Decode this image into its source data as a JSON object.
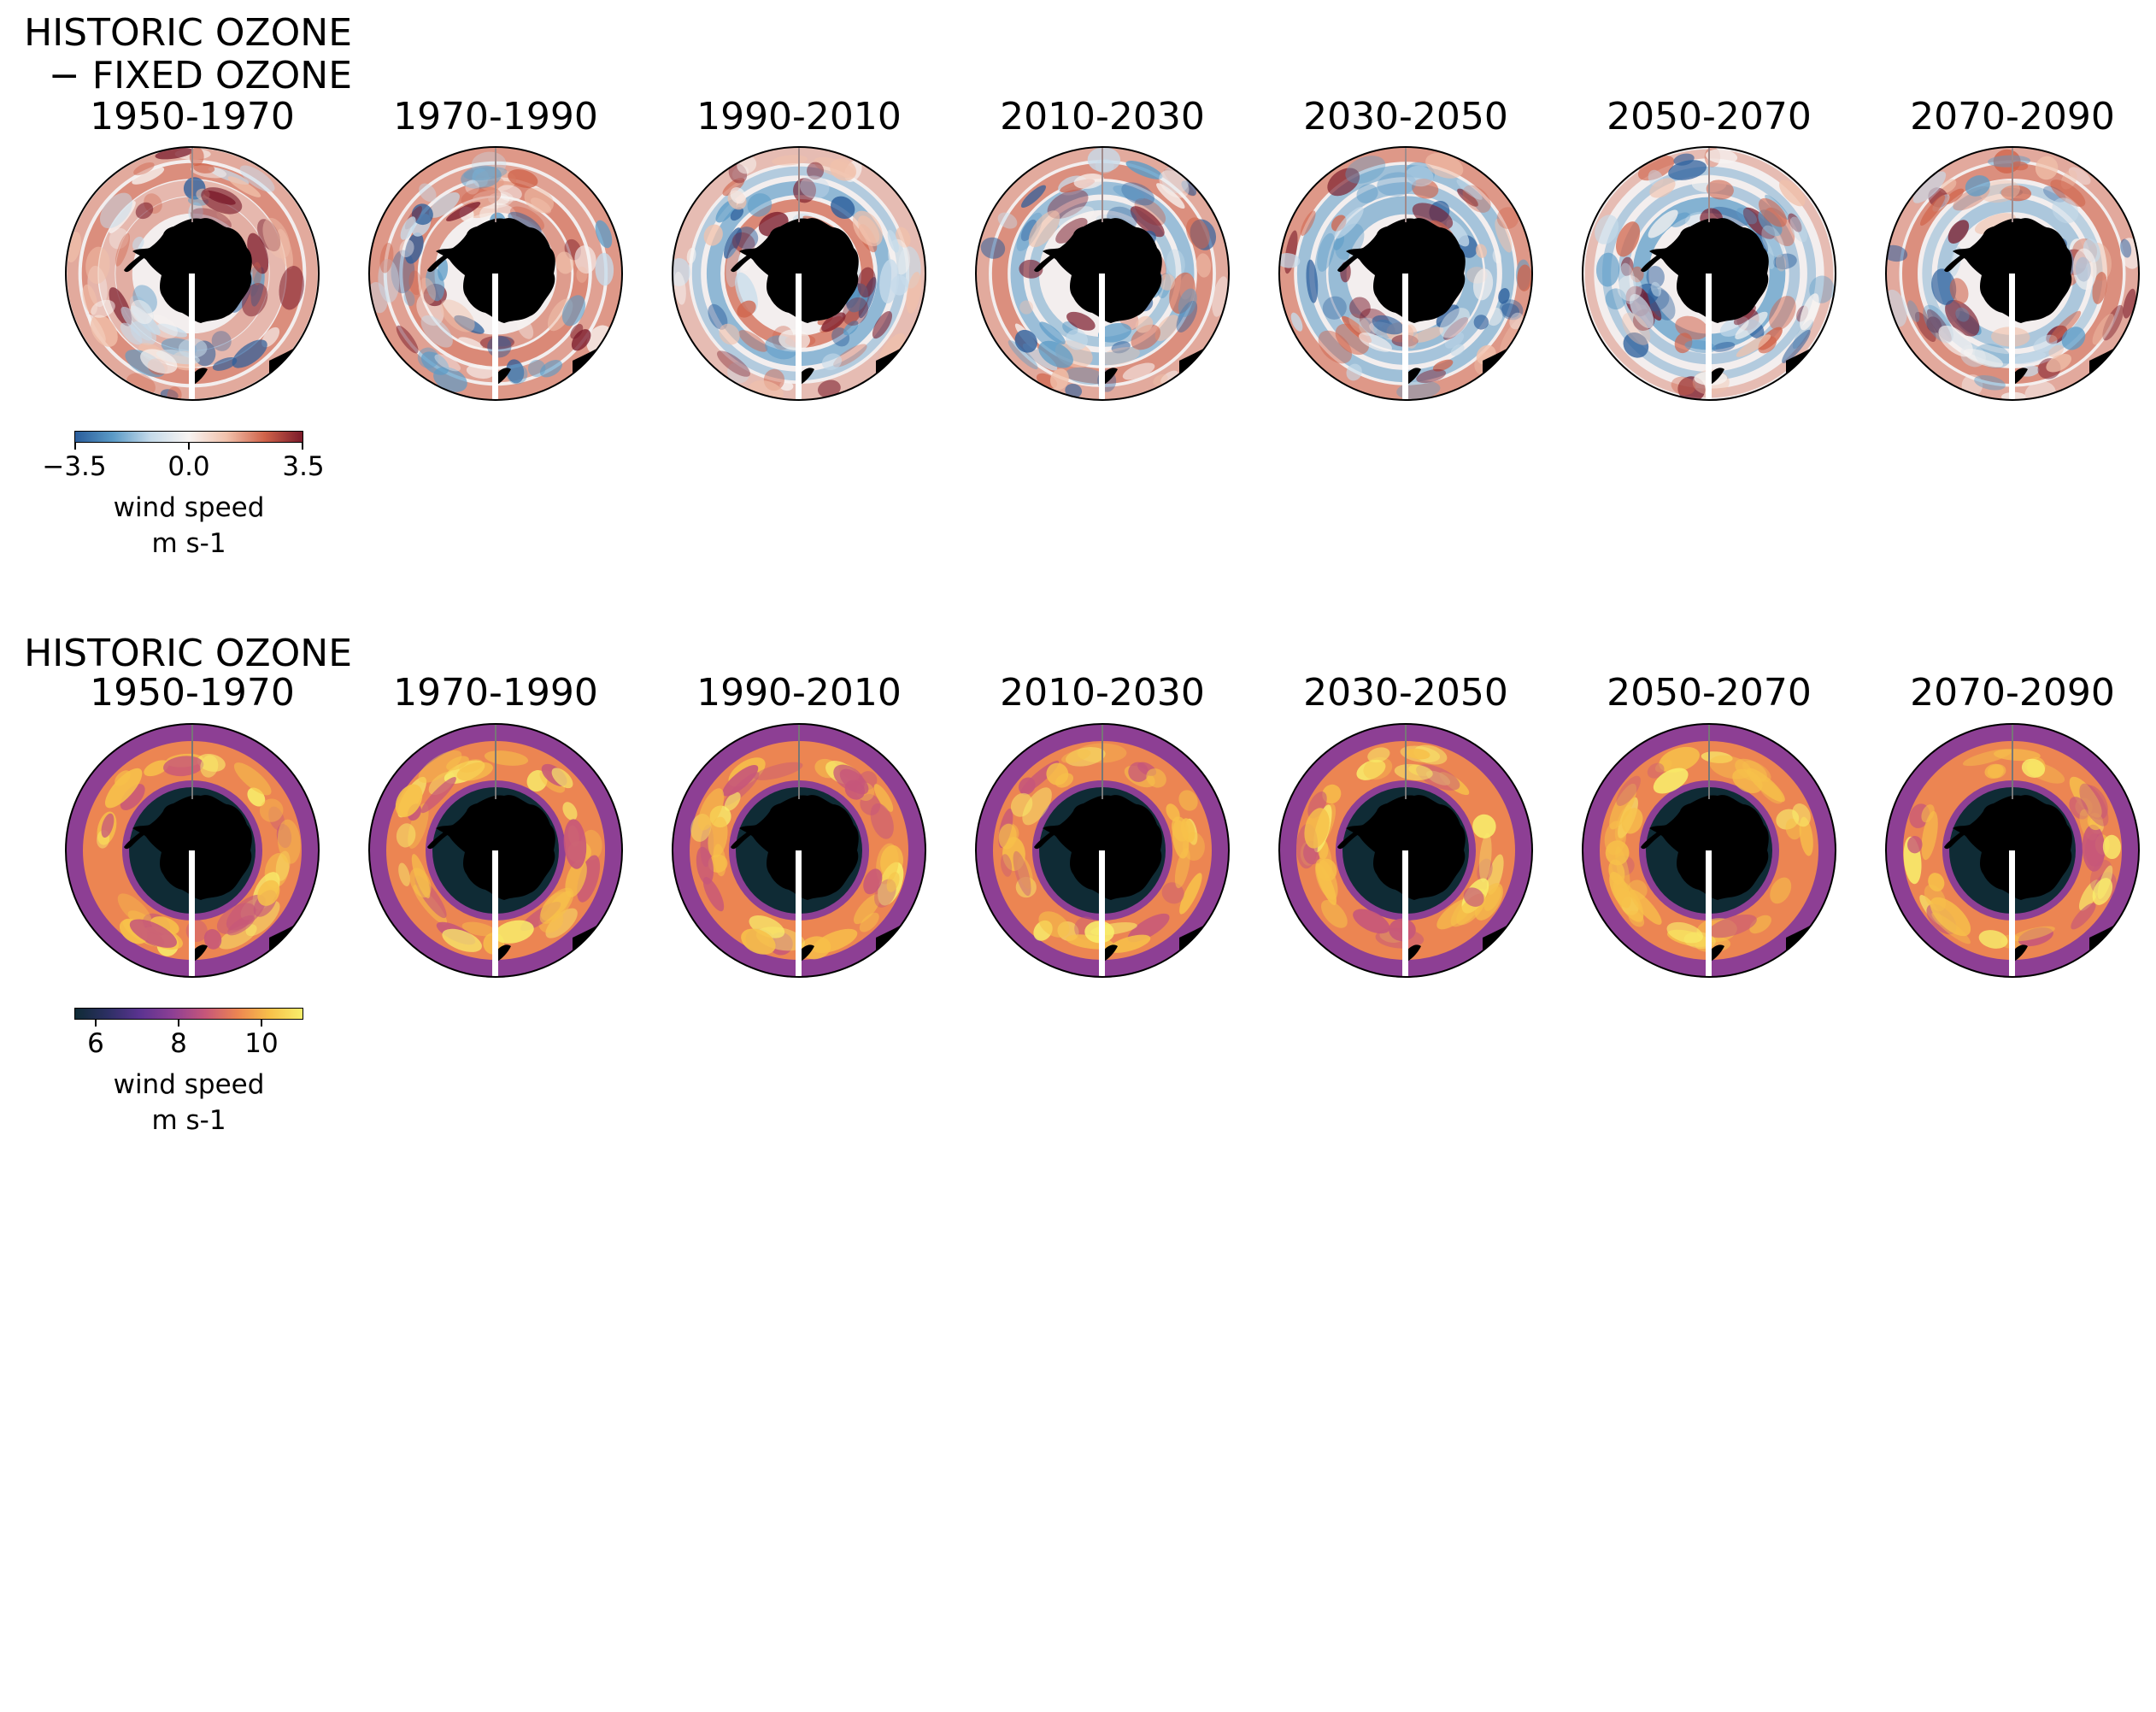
{
  "figure": {
    "rows": [
      {
        "title_lines": [
          "HISTORIC OZONE",
          "− FIXED OZONE"
        ],
        "panels": [
          "1950-1970",
          "1970-1990",
          "1990-2010",
          "2010-2030",
          "2030-2050",
          "2050-2070",
          "2070-2090"
        ],
        "colormap": "diverging blue-white-red",
        "colorbar": {
          "ticks": [
            "−3.5",
            "0.0",
            "3.5"
          ],
          "tick_values": [
            -3.5,
            0.0,
            3.5
          ],
          "range": [
            -3.5,
            3.5
          ],
          "label_line1": "wind speed",
          "label_line2": "m s-1",
          "colors": [
            "#2a5d9b",
            "#5b9bc7",
            "#c6dbea",
            "#f7f3f1",
            "#f1c1ab",
            "#d0634a",
            "#7a1a2a"
          ]
        }
      },
      {
        "title_lines": [
          "HISTORIC OZONE"
        ],
        "panels": [
          "1950-1970",
          "1970-1990",
          "1990-2010",
          "2010-2030",
          "2030-2050",
          "2050-2070",
          "2070-2090"
        ],
        "colormap": "thermal-like dark-purple-orange-yellow",
        "colorbar": {
          "ticks": [
            "6",
            "8",
            "10"
          ],
          "tick_values": [
            6,
            8,
            10
          ],
          "range": [
            5.5,
            11
          ],
          "label_line1": "wind speed",
          "label_line2": "m s-1",
          "colors": [
            "#0f2b35",
            "#2c2f63",
            "#5b3391",
            "#8d3f94",
            "#c6567a",
            "#ec8552",
            "#f7c14a",
            "#f8ee6b"
          ]
        }
      }
    ]
  }
}
